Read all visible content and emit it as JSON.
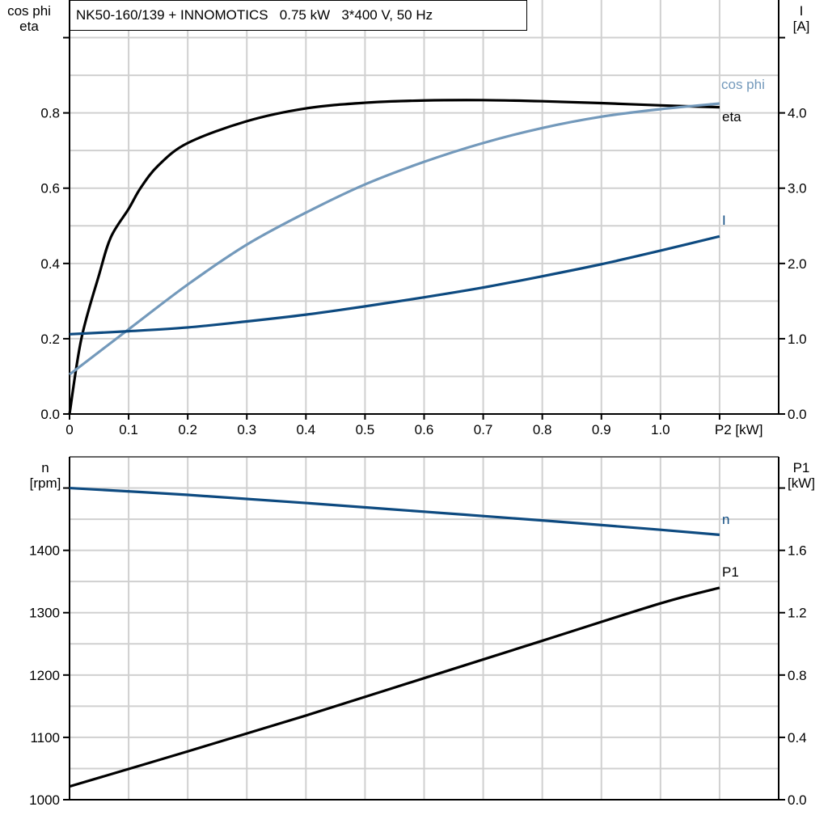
{
  "title": "NK50-160/139 + INNOMOTICS   0.75 kW   3*400 V, 50 Hz",
  "chart_data": [
    {
      "type": "line",
      "xlabel": "P2 [kW]",
      "xlim": [
        0,
        1.2
      ],
      "xticks": [
        "0",
        "0.1",
        "0.2",
        "0.3",
        "0.4",
        "0.5",
        "0.6",
        "0.7",
        "0.8",
        "0.9",
        "1.0",
        "P2 [kW]"
      ],
      "ylabel_left": [
        "cos phi",
        "eta"
      ],
      "ylim_left": [
        0,
        1.1
      ],
      "yticks_left": [
        "0.0",
        "0.2",
        "0.4",
        "0.6",
        "0.8"
      ],
      "ylabel_right": [
        "I",
        "[A]"
      ],
      "ylim_right": [
        0,
        5.5
      ],
      "yticks_right": [
        "0.0",
        "1.0",
        "2.0",
        "3.0",
        "4.0"
      ],
      "grid": true,
      "series": [
        {
          "name": "eta",
          "axis": "left",
          "color": "#000000",
          "x": [
            0,
            0.02,
            0.05,
            0.07,
            0.1,
            0.12,
            0.15,
            0.2,
            0.3,
            0.4,
            0.5,
            0.6,
            0.7,
            0.8,
            0.9,
            1.0,
            1.1
          ],
          "y": [
            0,
            0.2,
            0.37,
            0.47,
            0.545,
            0.6,
            0.66,
            0.72,
            0.778,
            0.812,
            0.827,
            0.833,
            0.834,
            0.831,
            0.826,
            0.82,
            0.815
          ]
        },
        {
          "name": "cos phi",
          "axis": "left",
          "color": "#7399bb",
          "x": [
            0,
            0.1,
            0.2,
            0.3,
            0.4,
            0.5,
            0.6,
            0.7,
            0.8,
            0.9,
            1.0,
            1.1
          ],
          "y": [
            0.105,
            0.225,
            0.344,
            0.45,
            0.535,
            0.61,
            0.67,
            0.72,
            0.76,
            0.79,
            0.81,
            0.825
          ]
        },
        {
          "name": "I",
          "axis": "right",
          "color": "#0d4a80",
          "x": [
            0,
            0.1,
            0.2,
            0.3,
            0.4,
            0.5,
            0.6,
            0.7,
            0.8,
            0.9,
            1.0,
            1.1
          ],
          "y": [
            1.06,
            1.1,
            1.15,
            1.23,
            1.32,
            1.43,
            1.55,
            1.68,
            1.83,
            1.99,
            2.17,
            2.36
          ]
        }
      ]
    },
    {
      "type": "line",
      "xlim": [
        0,
        1.2
      ],
      "ylabel_left": [
        "n",
        "[rpm]"
      ],
      "ylim_left": [
        1000,
        1550
      ],
      "yticks_left": [
        "1000",
        "1100",
        "1200",
        "1300",
        "1400"
      ],
      "ylabel_right": [
        "P1",
        "[kW]"
      ],
      "ylim_right": [
        0,
        2.2
      ],
      "yticks_right": [
        "0.0",
        "0.4",
        "0.8",
        "1.2",
        "1.6"
      ],
      "grid": true,
      "series": [
        {
          "name": "n",
          "axis": "left",
          "color": "#0d4a80",
          "x": [
            0,
            0.2,
            0.4,
            0.6,
            0.8,
            1.0,
            1.1
          ],
          "y": [
            1500,
            1489,
            1476,
            1462,
            1448,
            1433,
            1425
          ]
        },
        {
          "name": "P1",
          "axis": "right",
          "color": "#000000",
          "x": [
            0,
            0.2,
            0.4,
            0.6,
            0.8,
            1.0,
            1.1
          ],
          "y": [
            0.085,
            0.31,
            0.54,
            0.78,
            1.02,
            1.26,
            1.36
          ]
        }
      ]
    }
  ]
}
